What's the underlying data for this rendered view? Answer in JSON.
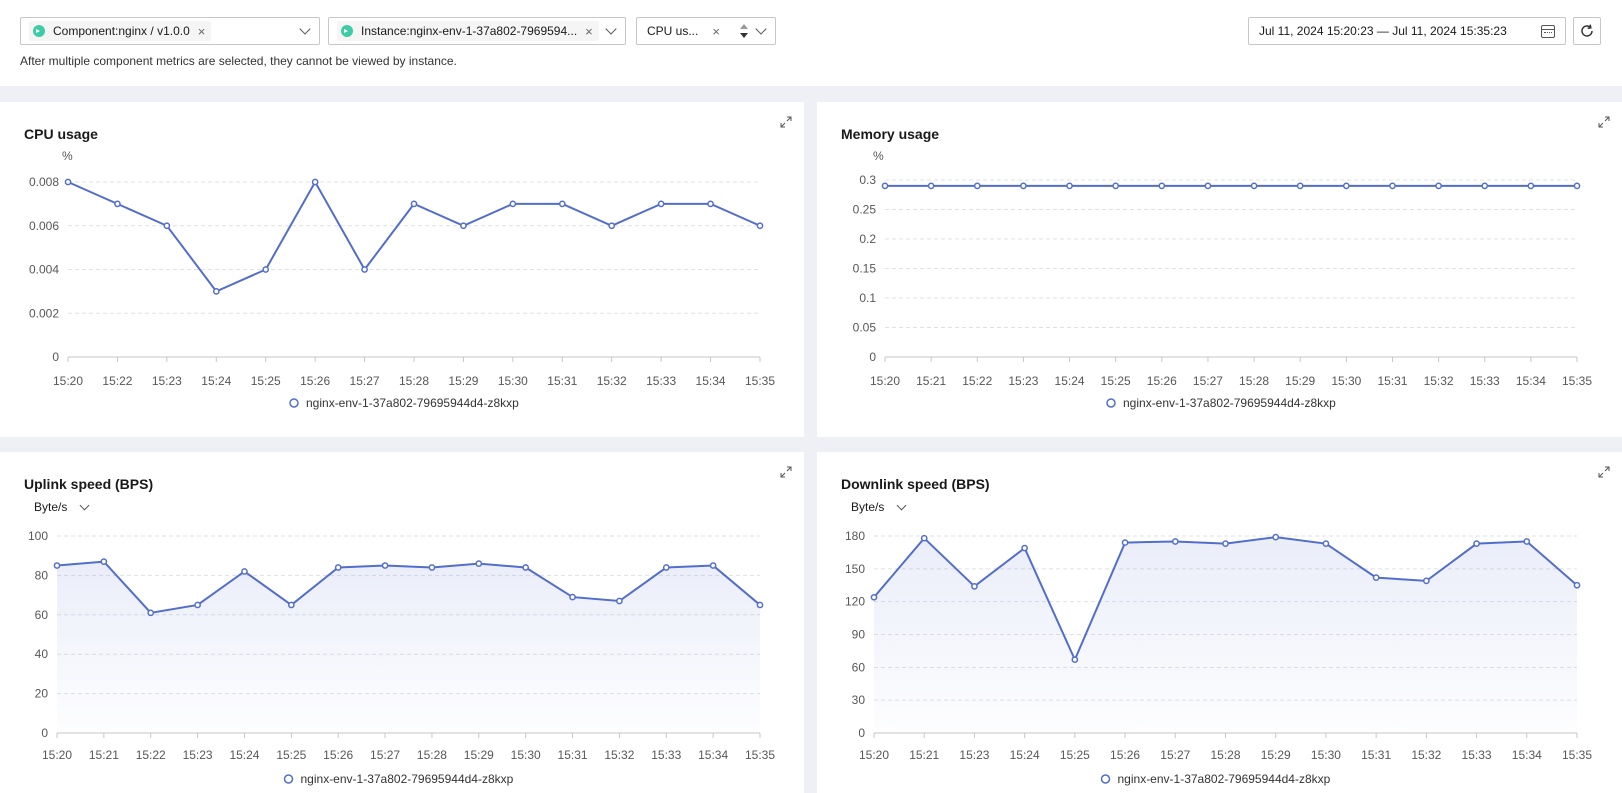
{
  "filters": {
    "component_tag": "Component:nginx / v1.0.0",
    "instance_tag": "Instance:nginx-env-1-37a802-7969594...",
    "metric_tag": "CPU us...",
    "hint": "After multiple component metrics are selected, they cannot be viewed by instance.",
    "date_range": "Jul 11, 2024 15:20:23 — Jul 11, 2024 15:35:23"
  },
  "colors": {
    "series": "#526ecc",
    "grid": "#dfe1e6",
    "accent_dot": "#3dcca6"
  },
  "charts": {
    "cpu": {
      "title": "CPU usage",
      "unit": "%"
    },
    "memory": {
      "title": "Memory usage",
      "unit": "%"
    },
    "uplink": {
      "title": "Uplink speed (BPS)",
      "unit_select": "Byte/s"
    },
    "downlink": {
      "title": "Downlink speed (BPS)",
      "unit_select": "Byte/s"
    }
  },
  "chart_data": [
    {
      "type": "line",
      "title": "CPU usage",
      "ylabel": "%",
      "x_ticks": [
        "15:20",
        "15:22",
        "15:23",
        "15:24",
        "15:25",
        "15:26",
        "15:27",
        "15:28",
        "15:29",
        "15:30",
        "15:31",
        "15:32",
        "15:33",
        "15:34",
        "15:35"
      ],
      "y_ticks": [
        "0",
        "0.002",
        "0.004",
        "0.006",
        "0.008"
      ],
      "ylim": [
        0,
        0.008
      ],
      "series": [
        {
          "name": "nginx-env-1-37a802-79695944d4-z8kxp",
          "values": [
            0.008,
            0.007,
            0.006,
            0.003,
            0.004,
            0.008,
            0.004,
            0.007,
            0.006,
            0.007,
            0.007,
            0.006,
            0.007,
            0.007,
            0.006
          ]
        }
      ],
      "grid": true,
      "legend": "bottom",
      "area": false
    },
    {
      "type": "line",
      "title": "Memory usage",
      "ylabel": "%",
      "x_ticks": [
        "15:20",
        "15:21",
        "15:22",
        "15:23",
        "15:24",
        "15:25",
        "15:26",
        "15:27",
        "15:28",
        "15:29",
        "15:30",
        "15:31",
        "15:32",
        "15:33",
        "15:34",
        "15:35"
      ],
      "y_ticks": [
        "0",
        "0.05",
        "0.1",
        "0.15",
        "0.2",
        "0.25",
        "0.3"
      ],
      "ylim": [
        0,
        0.3
      ],
      "series": [
        {
          "name": "nginx-env-1-37a802-79695944d4-z8kxp",
          "values": [
            0.29,
            0.29,
            0.29,
            0.29,
            0.29,
            0.29,
            0.29,
            0.29,
            0.29,
            0.29,
            0.29,
            0.29,
            0.29,
            0.29,
            0.29,
            0.29
          ]
        }
      ],
      "grid": true,
      "legend": "bottom",
      "area": false
    },
    {
      "type": "area",
      "title": "Uplink speed (BPS)",
      "ylabel": "Byte/s",
      "x_ticks": [
        "15:20",
        "15:21",
        "15:22",
        "15:23",
        "15:24",
        "15:25",
        "15:26",
        "15:27",
        "15:28",
        "15:29",
        "15:30",
        "15:31",
        "15:32",
        "15:33",
        "15:34",
        "15:35"
      ],
      "y_ticks": [
        "0",
        "20",
        "40",
        "60",
        "80",
        "100"
      ],
      "ylim": [
        0,
        100
      ],
      "series": [
        {
          "name": "nginx-env-1-37a802-79695944d4-z8kxp",
          "values": [
            85,
            87,
            61,
            65,
            82,
            65,
            84,
            85,
            84,
            86,
            84,
            69,
            67,
            84,
            85,
            65
          ]
        }
      ],
      "grid": true,
      "legend": "bottom",
      "area": true
    },
    {
      "type": "area",
      "title": "Downlink speed (BPS)",
      "ylabel": "Byte/s",
      "x_ticks": [
        "15:20",
        "15:21",
        "15:23",
        "15:24",
        "15:25",
        "15:26",
        "15:27",
        "15:28",
        "15:29",
        "15:30",
        "15:31",
        "15:32",
        "15:33",
        "15:34",
        "15:35"
      ],
      "y_ticks": [
        "0",
        "30",
        "60",
        "90",
        "120",
        "150",
        "180"
      ],
      "ylim": [
        0,
        180
      ],
      "series": [
        {
          "name": "nginx-env-1-37a802-79695944d4-z8kxp",
          "values": [
            124,
            178,
            134,
            169,
            67,
            174,
            175,
            173,
            179,
            173,
            142,
            139,
            173,
            175,
            135
          ]
        }
      ],
      "grid": true,
      "legend": "bottom",
      "area": true
    }
  ]
}
